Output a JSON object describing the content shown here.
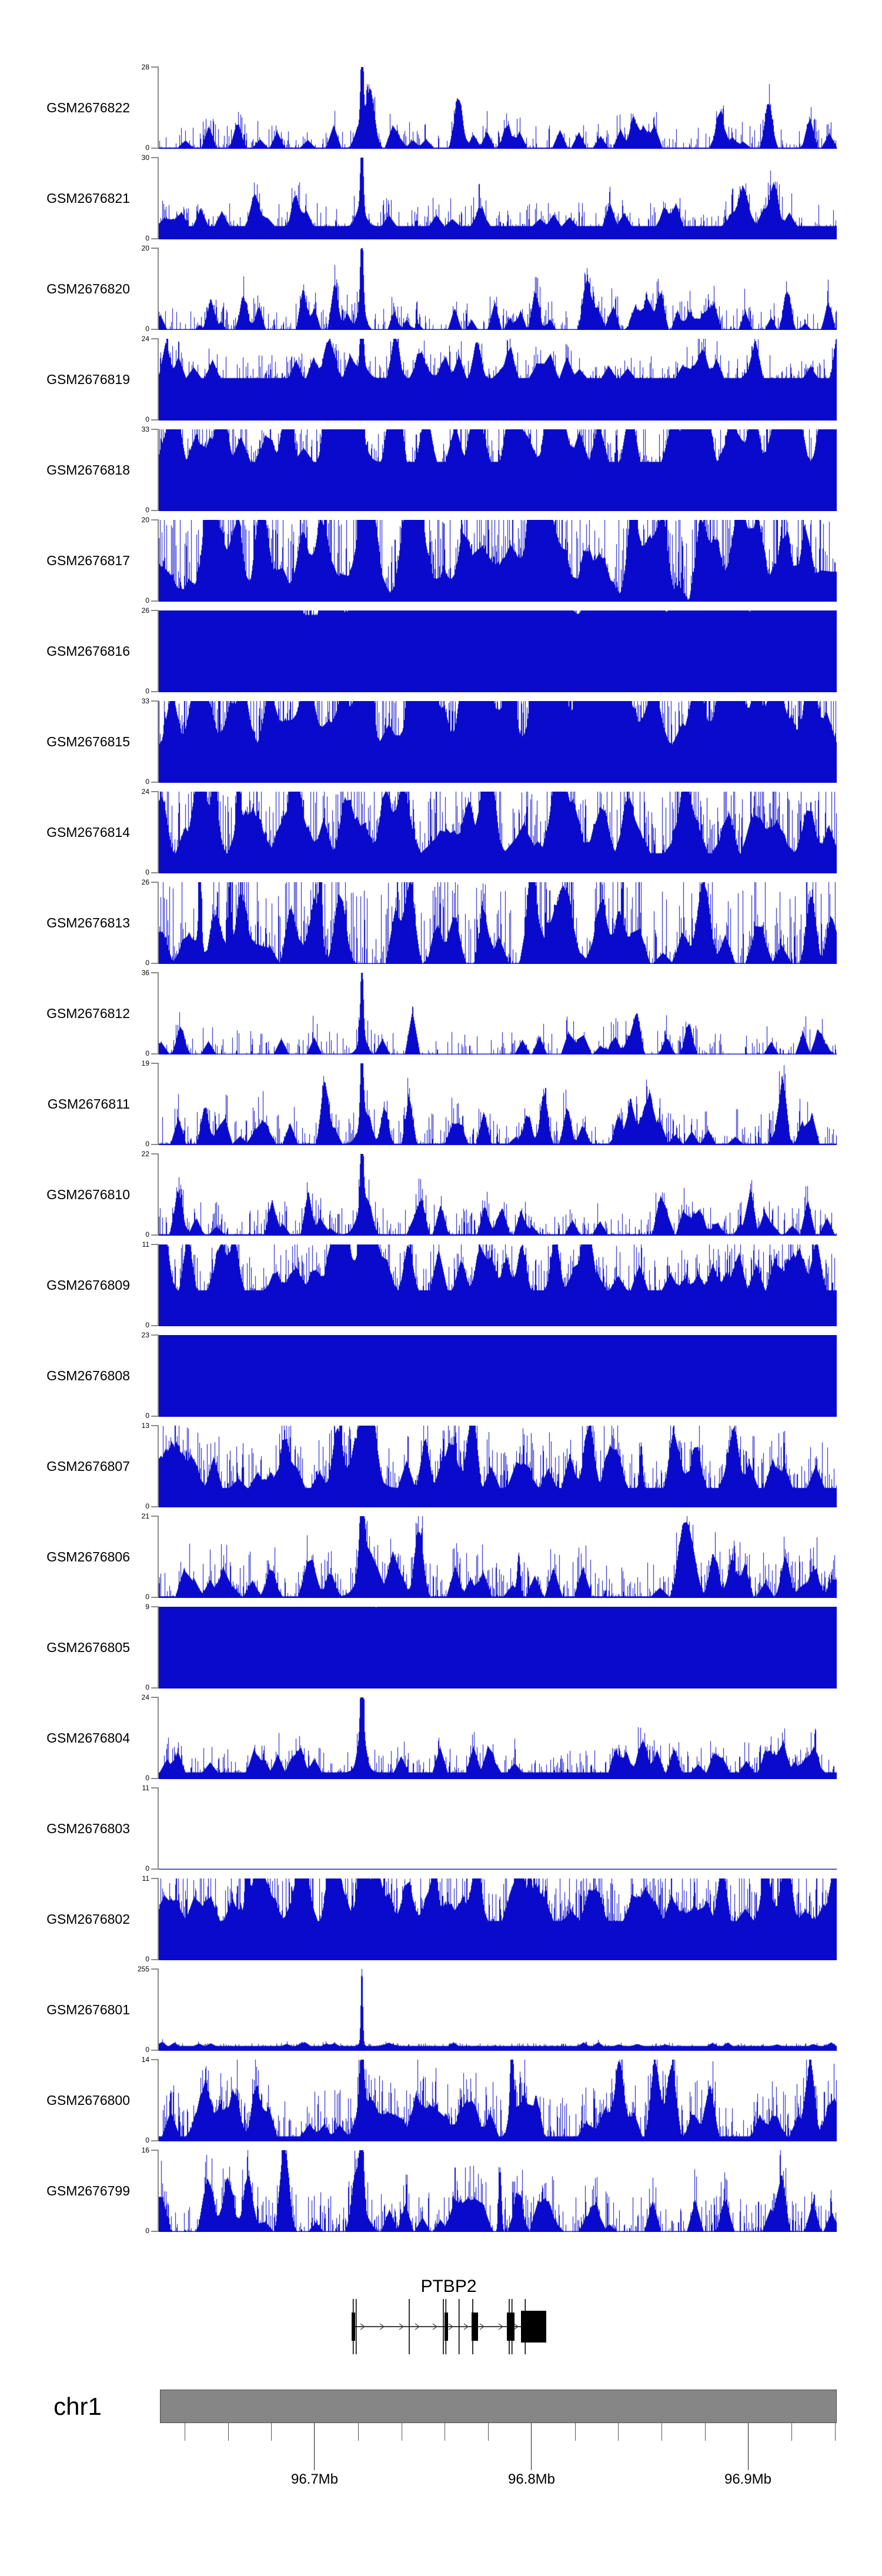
{
  "colors": {
    "data_blue": "#0a0acd",
    "axis_gray": "#8a8a8a",
    "ideogram_fill": "#868686",
    "ideogram_border": "#4b4b4b",
    "gene_black": "#000000",
    "arrow_gray": "#3d3d3d",
    "minor_tick": "#555555",
    "major_tick": "#222222"
  },
  "chart_data": {
    "type": "area",
    "title": "",
    "region": {
      "chromosome": "chr1",
      "x_start_mb": 96.628,
      "x_end_mb": 96.941,
      "unit": "Mb"
    },
    "y_axis": {
      "zero_label": "0"
    },
    "axis": {
      "major_ticks_mb": [
        96.7,
        96.8,
        96.9
      ],
      "major_tick_labels": [
        "96.7Mb",
        "96.8Mb",
        "96.9Mb"
      ],
      "minor_ticks_mb": [
        96.64,
        96.66,
        96.68,
        96.72,
        96.74,
        96.76,
        96.78,
        96.82,
        96.84,
        96.86,
        96.88,
        96.92,
        96.94
      ],
      "minor_tick_interval_mb": 0.02
    },
    "tracks": [
      {
        "label": "GSM2676822",
        "ymax": 28,
        "seed": 11,
        "floor": 0.015,
        "moundDens": 0.035,
        "moundH": 0.32,
        "moundW": 6,
        "spikeDens": 0.32,
        "spikeMax": 0.27,
        "spikePow": 3,
        "peaks": [
          [
            345,
            1,
            2.3
          ],
          [
            345,
            0.16,
            8
          ]
        ]
      },
      {
        "label": "GSM2676821",
        "ymax": 30,
        "seed": 22,
        "floor": 0.015,
        "moundDens": 0.035,
        "moundH": 0.34,
        "moundW": 6,
        "spikeDens": 0.34,
        "spikeMax": 0.3,
        "spikePow": 3,
        "peaks": [
          [
            345,
            1,
            2.3
          ],
          [
            345,
            0.17,
            8
          ]
        ]
      },
      {
        "label": "GSM2676820",
        "ymax": 20,
        "seed": 33,
        "floor": 0.018,
        "moundDens": 0.05,
        "moundH": 0.38,
        "moundW": 6,
        "spikeDens": 0.45,
        "spikeMax": 0.3,
        "spikePow": 3,
        "peaks": [
          [
            345,
            1,
            2.3
          ],
          [
            345,
            0.2,
            9
          ]
        ]
      },
      {
        "label": "GSM2676819",
        "ymax": 24,
        "seed": 44,
        "floor": 0.015,
        "moundDens": 0.04,
        "moundH": 0.34,
        "moundW": 6,
        "spikeDens": 0.38,
        "spikeMax": 0.28,
        "spikePow": 3,
        "peaks": [
          [
            345,
            1,
            2.4
          ],
          [
            345,
            0.18,
            9
          ]
        ]
      },
      {
        "label": "GSM2676818",
        "ymax": 33,
        "seed": 55,
        "floor": 0.02,
        "moundDens": 0.06,
        "moundH": 0.6,
        "moundW": 8,
        "spikeDens": 0.45,
        "spikeMax": 0.5,
        "spikePow": 3,
        "peaks": [
          [
            345,
            1,
            2.6
          ],
          [
            345,
            0.22,
            10
          ]
        ]
      },
      {
        "label": "GSM2676817",
        "ymax": 20,
        "seed": 66,
        "floor": 0.04,
        "moundDens": 0.09,
        "moundH": 0.55,
        "moundW": 9,
        "spikeDens": 0.5,
        "spikeMax": 0.95,
        "spikePow": 2.2,
        "peaks": [
          [
            345,
            0.5,
            4
          ]
        ]
      },
      {
        "label": "GSM2676816",
        "ymax": 26,
        "seed": 77,
        "floor": 0.04,
        "moundDens": 0.09,
        "moundH": 0.52,
        "moundW": 9,
        "spikeDens": 0.5,
        "spikeMax": 0.88,
        "spikePow": 2.2,
        "peaks": [
          [
            345,
            0.45,
            4
          ]
        ]
      },
      {
        "label": "GSM2676815",
        "ymax": 33,
        "seed": 88,
        "floor": 0.04,
        "moundDens": 0.09,
        "moundH": 0.55,
        "moundW": 9,
        "spikeDens": 0.5,
        "spikeMax": 0.9,
        "spikePow": 2.2,
        "peaks": [
          [
            60,
            1,
            2.5
          ],
          [
            78,
            0.9,
            2.5
          ],
          [
            345,
            0.45,
            4
          ]
        ]
      },
      {
        "label": "GSM2676814",
        "ymax": 24,
        "seed": 99,
        "floor": 0.03,
        "moundDens": 0.08,
        "moundH": 0.5,
        "moundW": 8,
        "spikeDens": 0.45,
        "spikeMax": 0.8,
        "spikePow": 2.4,
        "peaks": [
          [
            95,
            0.85,
            3
          ],
          [
            135,
            0.75,
            3
          ]
        ]
      },
      {
        "label": "GSM2676813",
        "ymax": 26,
        "seed": 110,
        "floor": 0.03,
        "moundDens": 0.08,
        "moundH": 0.5,
        "moundW": 8,
        "spikeDens": 0.5,
        "spikeMax": 0.9,
        "spikePow": 2.4,
        "peaks": [
          [
            70,
            1,
            2.5
          ],
          [
            120,
            0.9,
            2.5
          ],
          [
            275,
            0.85,
            2.5
          ]
        ]
      },
      {
        "label": "GSM2676812",
        "ymax": 36,
        "seed": 121,
        "floor": 0.015,
        "moundDens": 0.035,
        "moundH": 0.32,
        "moundW": 6,
        "spikeDens": 0.32,
        "spikeMax": 0.3,
        "spikePow": 3,
        "peaks": [
          [
            345,
            1,
            2.3
          ],
          [
            345,
            0.15,
            8
          ]
        ]
      },
      {
        "label": "GSM2676811",
        "ymax": 19,
        "seed": 132,
        "floor": 0.018,
        "moundDens": 0.045,
        "moundH": 0.36,
        "moundW": 6,
        "spikeDens": 0.4,
        "spikeMax": 0.38,
        "spikePow": 3,
        "peaks": [
          [
            345,
            1,
            2.4
          ],
          [
            345,
            0.2,
            9
          ]
        ]
      },
      {
        "label": "GSM2676810",
        "ymax": 22,
        "seed": 143,
        "floor": 0.018,
        "moundDens": 0.04,
        "moundH": 0.34,
        "moundW": 6,
        "spikeDens": 0.4,
        "spikeMax": 0.32,
        "spikePow": 3,
        "peaks": [
          [
            345,
            1,
            2.6
          ],
          [
            345,
            0.3,
            10
          ]
        ]
      },
      {
        "label": "GSM2676809",
        "ymax": 11,
        "seed": 154,
        "floor": 0.02,
        "moundDens": 0.06,
        "moundH": 0.5,
        "moundW": 7,
        "spikeDens": 0.5,
        "spikeMax": 0.45,
        "spikePow": 2.6,
        "peaks": [
          [
            345,
            1,
            3.5
          ],
          [
            352,
            0.45,
            18
          ]
        ]
      },
      {
        "label": "GSM2676808",
        "ymax": 23,
        "seed": 165,
        "floor": 0.04,
        "moundDens": 0.09,
        "moundH": 0.52,
        "moundW": 9,
        "spikeDens": 0.5,
        "spikeMax": 0.85,
        "spikePow": 2.2,
        "peaks": [
          [
            345,
            0.5,
            4
          ]
        ]
      },
      {
        "label": "GSM2676807",
        "ymax": 13,
        "seed": 176,
        "floor": 0.02,
        "moundDens": 0.05,
        "moundH": 0.48,
        "moundW": 7,
        "spikeDens": 0.48,
        "spikeMax": 0.5,
        "spikePow": 2.6,
        "peaks": [
          [
            345,
            0.9,
            3.5
          ],
          [
            352,
            0.4,
            16
          ],
          [
            820,
            0.55,
            2.5
          ]
        ]
      },
      {
        "label": "GSM2676806",
        "ymax": 21,
        "seed": 187,
        "floor": 0.02,
        "moundDens": 0.045,
        "moundH": 0.45,
        "moundW": 7,
        "spikeDens": 0.45,
        "spikeMax": 0.42,
        "spikePow": 2.6,
        "peaks": [
          [
            345,
            1,
            3.5
          ],
          [
            358,
            0.5,
            16
          ],
          [
            612,
            0.5,
            2.5
          ]
        ]
      },
      {
        "label": "GSM2676805",
        "ymax": 9,
        "seed": 198,
        "floor": 0.05,
        "moundDens": 0.1,
        "moundH": 0.6,
        "moundW": 9,
        "spikeDens": 0.5,
        "spikeMax": 0.8,
        "spikePow": 2.2,
        "peaks": [
          [
            345,
            0.4,
            4
          ]
        ]
      },
      {
        "label": "GSM2676804",
        "ymax": 24,
        "seed": 209,
        "floor": 0.018,
        "moundDens": 0.04,
        "moundH": 0.36,
        "moundW": 6,
        "spikeDens": 0.4,
        "spikeMax": 0.3,
        "spikePow": 3,
        "peaks": [
          [
            345,
            1,
            2.4
          ],
          [
            345,
            0.22,
            9
          ]
        ]
      },
      {
        "label": "GSM2676803",
        "ymax": 11,
        "seed": 220,
        "floor": 0.02,
        "moundDens": 0.05,
        "moundH": 0.48,
        "moundW": 7,
        "spikeDens": 0.48,
        "spikeMax": 0.5,
        "spikePow": 2.6,
        "peaks": [
          [
            345,
            0.9,
            3.5
          ],
          [
            350,
            0.4,
            14
          ],
          [
            190,
            0.55,
            2.5
          ]
        ]
      },
      {
        "label": "GSM2676802",
        "ymax": 11,
        "seed": 231,
        "floor": 0.02,
        "moundDens": 0.06,
        "moundH": 0.48,
        "moundW": 7,
        "spikeDens": 0.55,
        "spikeMax": 0.6,
        "spikePow": 2.6,
        "peaks": [
          [
            150,
            0.9,
            2.5
          ],
          [
            345,
            0.85,
            3
          ],
          [
            470,
            0.5,
            2.5
          ],
          [
            630,
            0.55,
            2.5
          ]
        ]
      },
      {
        "label": "GSM2676801",
        "ymax": 255,
        "seed": 242,
        "floor": 0.008,
        "moundDens": 0.02,
        "moundH": 0.05,
        "moundW": 4,
        "spikeDens": 0.25,
        "spikeMax": 0.035,
        "spikePow": 2,
        "peaks": [
          [
            345,
            1,
            1.6
          ]
        ]
      },
      {
        "label": "GSM2676800",
        "ymax": 14,
        "seed": 253,
        "floor": 0.02,
        "moundDens": 0.05,
        "moundH": 0.48,
        "moundW": 7,
        "spikeDens": 0.48,
        "spikeMax": 0.5,
        "spikePow": 2.6,
        "peaks": [
          [
            345,
            0.85,
            3.5
          ],
          [
            360,
            0.45,
            14
          ],
          [
            600,
            0.95,
            2.5
          ]
        ]
      },
      {
        "label": "GSM2676799",
        "ymax": 16,
        "seed": 264,
        "floor": 0.02,
        "moundDens": 0.05,
        "moundH": 0.45,
        "moundW": 7,
        "spikeDens": 0.48,
        "spikeMax": 0.45,
        "spikePow": 2.6,
        "peaks": [
          [
            345,
            1,
            2.8
          ],
          [
            345,
            0.28,
            12
          ],
          [
            580,
            0.8,
            2.5
          ]
        ]
      }
    ],
    "gene_track": {
      "name": "PTBP2",
      "strand": "+",
      "intron_line": [
        334,
        616
      ],
      "arrows_x": [
        347,
        380,
        413,
        440,
        470,
        497,
        523,
        550,
        582,
        608
      ],
      "boundaries_x": [
        330.7,
        335.7,
        426,
        484,
        488.3,
        510.7,
        534,
        596,
        600.7,
        623.3
      ],
      "exons": [
        [
          328,
          334
        ],
        [
          486,
          492
        ],
        [
          532,
          543
        ],
        [
          592,
          605
        ],
        [
          616,
          659
        ]
      ]
    },
    "ideogram": {
      "label": "chr1"
    }
  }
}
